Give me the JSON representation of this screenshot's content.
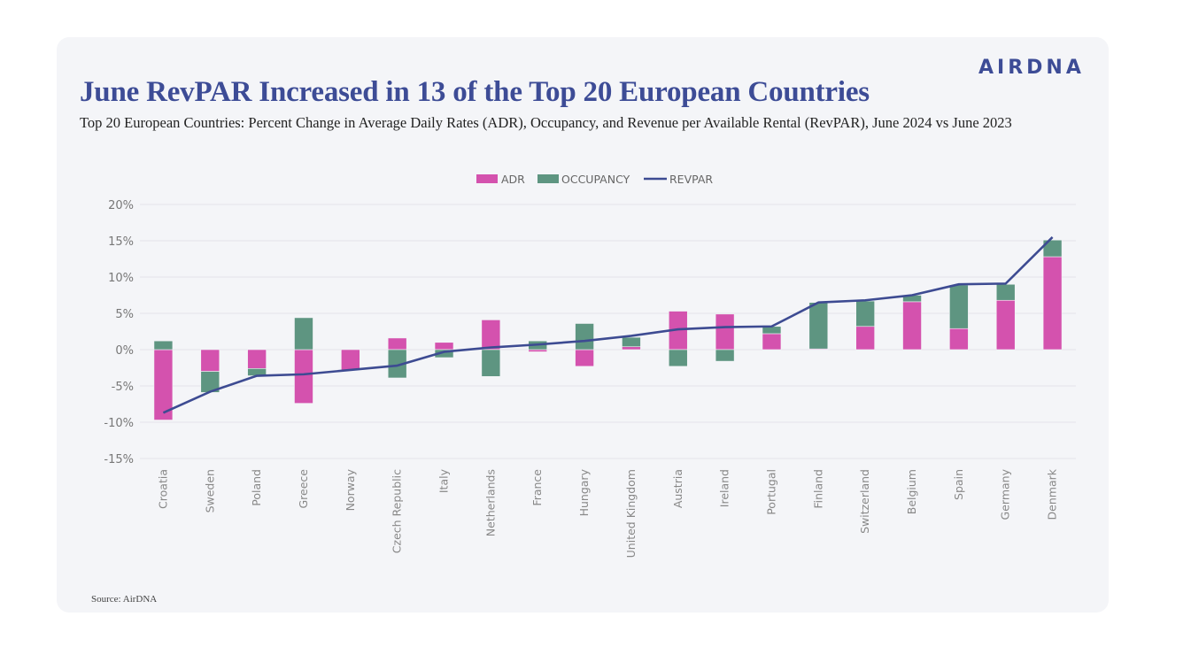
{
  "header": {
    "title": "June RevPAR Increased in 13 of the Top 20 European Countries",
    "subtitle": "Top 20 European Countries: Percent Change in Average Daily Rates (ADR), Occupancy, and Revenue per Available Rental (RevPAR), June 2024 vs June 2023",
    "logo": "AIRDNA"
  },
  "footer": {
    "source": "Source: AirDNA"
  },
  "colors": {
    "adr": "#d452ae",
    "occupancy": "#5e9581",
    "revpar": "#3d4b92",
    "title": "#3d4c96"
  },
  "chart_data": {
    "type": "bar",
    "stacked": true,
    "title": "June RevPAR Increased in 13 of the Top 20 European Countries",
    "xlabel": "",
    "ylabel": "",
    "ylim": [
      -15,
      20
    ],
    "yticks": [
      20,
      15,
      10,
      5,
      0,
      -5,
      -10,
      -15
    ],
    "ytick_labels": [
      "20%",
      "15%",
      "10%",
      "5%",
      "0%",
      "-5%",
      "-10%",
      "-15%"
    ],
    "grid": true,
    "legend_position": "top-center",
    "legend": [
      "ADR",
      "OCCUPANCY",
      "REVPAR"
    ],
    "categories": [
      "Croatia",
      "Sweden",
      "Poland",
      "Greece",
      "Norway",
      "Czech Republic",
      "Italy",
      "Netherlands",
      "France",
      "Hungary",
      "United Kingdom",
      "Austria",
      "Ireland",
      "Portugal",
      "Finland",
      "Switzerland",
      "Belgium",
      "Spain",
      "Germany",
      "Denmark"
    ],
    "series": [
      {
        "name": "ADR",
        "type": "bar",
        "values": [
          -9.7,
          -3.0,
          -2.6,
          -7.4,
          -2.8,
          1.6,
          1.0,
          4.1,
          -0.3,
          -2.3,
          0.4,
          5.3,
          4.9,
          2.2,
          0.1,
          3.2,
          6.6,
          2.9,
          6.8,
          12.8
        ]
      },
      {
        "name": "OCCUPANCY",
        "type": "bar",
        "values": [
          1.2,
          -2.9,
          -1.0,
          4.4,
          0.0,
          -3.9,
          -1.1,
          -3.7,
          1.2,
          3.6,
          1.3,
          -2.3,
          -1.6,
          1.0,
          6.4,
          3.5,
          0.9,
          6.0,
          2.2,
          2.3
        ]
      },
      {
        "name": "REVPAR",
        "type": "line",
        "values": [
          -8.7,
          -5.8,
          -3.6,
          -3.4,
          -2.8,
          -2.2,
          -0.3,
          0.3,
          0.7,
          1.2,
          1.9,
          2.8,
          3.1,
          3.2,
          6.5,
          6.8,
          7.5,
          9.0,
          9.1,
          15.5
        ]
      }
    ]
  }
}
